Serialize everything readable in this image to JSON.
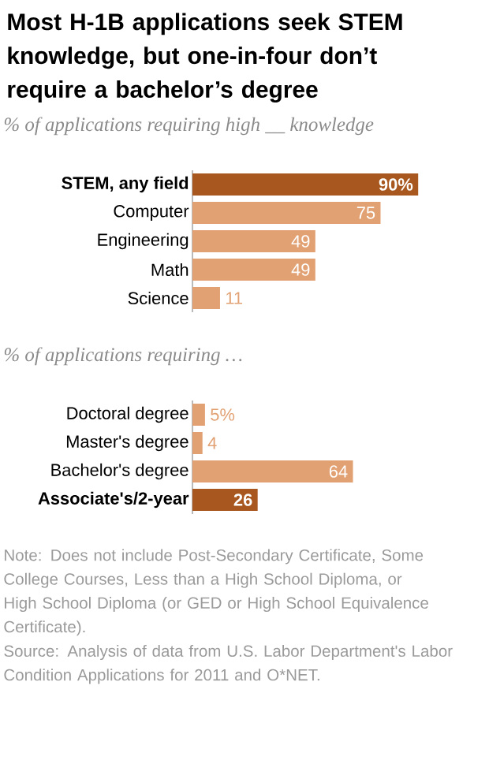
{
  "chart_data": [
    {
      "type": "bar",
      "orientation": "horizontal",
      "title": "Most H-1B applications seek STEM knowledge, but one-in-four don’t require a bachelor’s degree",
      "subtitle": "% of applications requiring high __ knowledge",
      "categories": [
        "STEM, any field",
        "Computer",
        "Engineering",
        "Math",
        "Science"
      ],
      "values": [
        90,
        75,
        49,
        49,
        11
      ],
      "value_labels": [
        "90%",
        "75",
        "49",
        "49",
        "11"
      ],
      "colors": [
        "#a8581f",
        "#e2a173",
        "#e2a173",
        "#e2a173",
        "#e2a173"
      ]
    },
    {
      "type": "bar",
      "orientation": "horizontal",
      "subtitle": "% of applications requiring …",
      "categories": [
        "Doctoral degree",
        "Master's degree",
        "Bachelor's degree",
        "Associate's/2-year"
      ],
      "values": [
        5,
        4,
        64,
        26
      ],
      "value_labels": [
        "5%",
        "4",
        "64",
        "26"
      ],
      "colors": [
        "#e2a173",
        "#e2a173",
        "#e2a173",
        "#a8581f"
      ],
      "annotations": [
        "Note: Does not include Post-Secondary Certificate, Some College Courses, Less than a High School Diploma, or High School Diploma (or GED or High School Equivalence Certificate).",
        "Source: Analysis of data from U.S. Labor Department's Labor Condition Applications for 2011 and O*NET."
      ]
    }
  ]
}
